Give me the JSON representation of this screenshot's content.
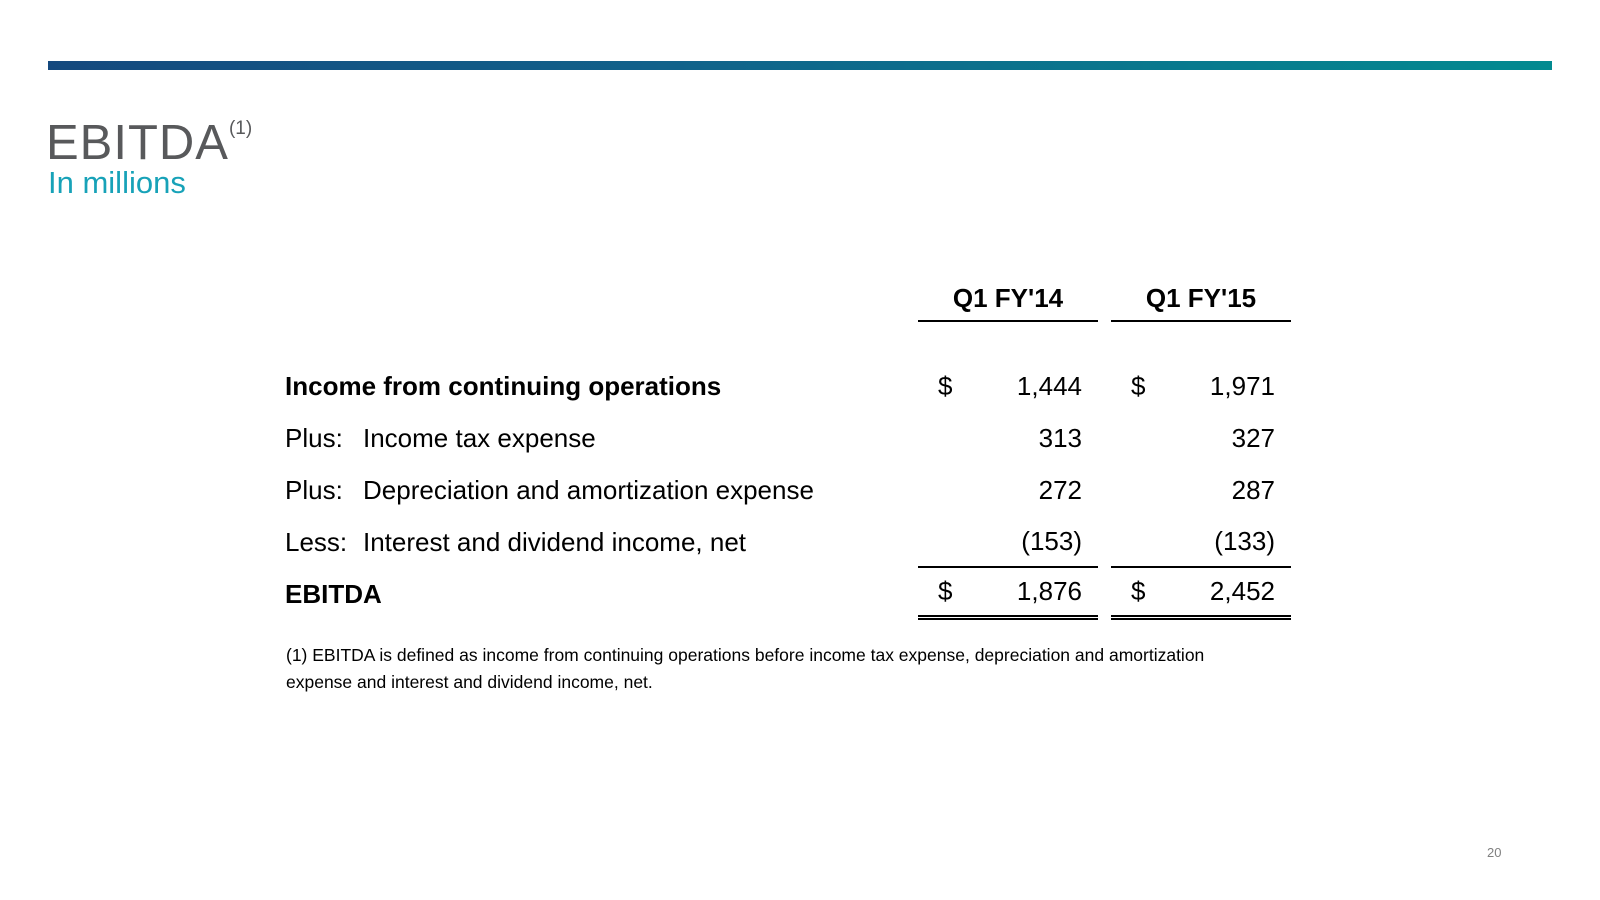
{
  "slide": {
    "title": "EBITDA",
    "title_superscript": "(1)",
    "subtitle": "In millions",
    "footnote": "(1) EBITDA is defined as income from continuing operations before income tax expense, depreciation and amortization expense and interest and dividend income, net.",
    "page_number": "20"
  },
  "colors": {
    "accent_bar_start": "#15497E",
    "accent_bar_end": "#028A90",
    "title_text": "#58595B",
    "subtitle_text": "#17A2B8",
    "table_text": "#000000",
    "page_number_text": "#808080"
  },
  "table": {
    "columns": [
      "Q1 FY'14",
      "Q1 FY'15"
    ],
    "rows": [
      {
        "prefix": "",
        "label": "Income from continuing operations",
        "currency": "$",
        "fy14": "1,444",
        "fy15": "1,971"
      },
      {
        "prefix": "Plus:",
        "label": "Income tax expense",
        "currency": "",
        "fy14": "313",
        "fy15": "327"
      },
      {
        "prefix": "Plus:",
        "label": "Depreciation and amortization expense",
        "currency": "",
        "fy14": "272",
        "fy15": "287"
      },
      {
        "prefix": "Less:",
        "label": "Interest and dividend income, net",
        "currency": "",
        "fy14": "(153)",
        "fy15": "(133)"
      },
      {
        "prefix": "",
        "label": "EBITDA",
        "currency": "$",
        "fy14": "1,876",
        "fy15": "2,452"
      }
    ]
  }
}
